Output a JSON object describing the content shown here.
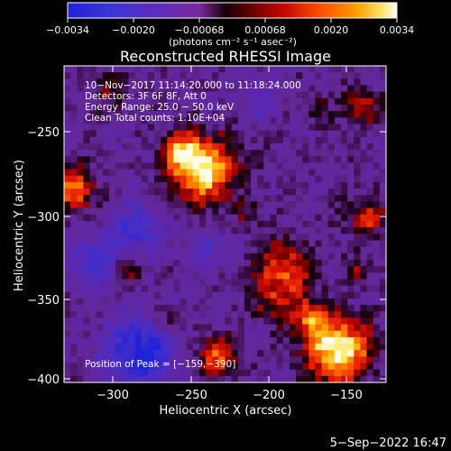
{
  "colorbar": {
    "tick_labels": [
      "−0.0034",
      "−0.0020",
      "−0.00068",
      "0.00068",
      "0.0020",
      "0.0034"
    ],
    "units_label": "(photons cm⁻² s⁻¹ asec⁻²)",
    "colormap": [
      "#1e22d8",
      "#4a2ec8",
      "#6a2aa8",
      "#7a2a96",
      "#3a0a14",
      "#8c0000",
      "#d81000",
      "#ff5a00",
      "#ffa800",
      "#fff070",
      "#ffffff"
    ]
  },
  "plot": {
    "title": "Reconstructed RHESSI Image",
    "info_lines": [
      "10−Nov−2017 11:14:20.000 to 11:18:24.000",
      "Detectors: 3F 6F 8F, Att 0",
      "Energy Range: 25.0 − 50.0 keV",
      "Clean    Total counts: 1.10E+04"
    ],
    "peak_label": "Position of Peak = [−159,−390]",
    "x_axis": {
      "title": "Heliocentric X (arcsec)",
      "ticks": [
        "−300",
        "−250",
        "−200",
        "−150"
      ]
    },
    "y_axis": {
      "title": "Heliocentric Y (arcsec)",
      "ticks": [
        "−250",
        "−300",
        "−350",
        "−400"
      ]
    }
  },
  "footer": {
    "timestamp": "5−Sep−2022 16:47"
  }
}
